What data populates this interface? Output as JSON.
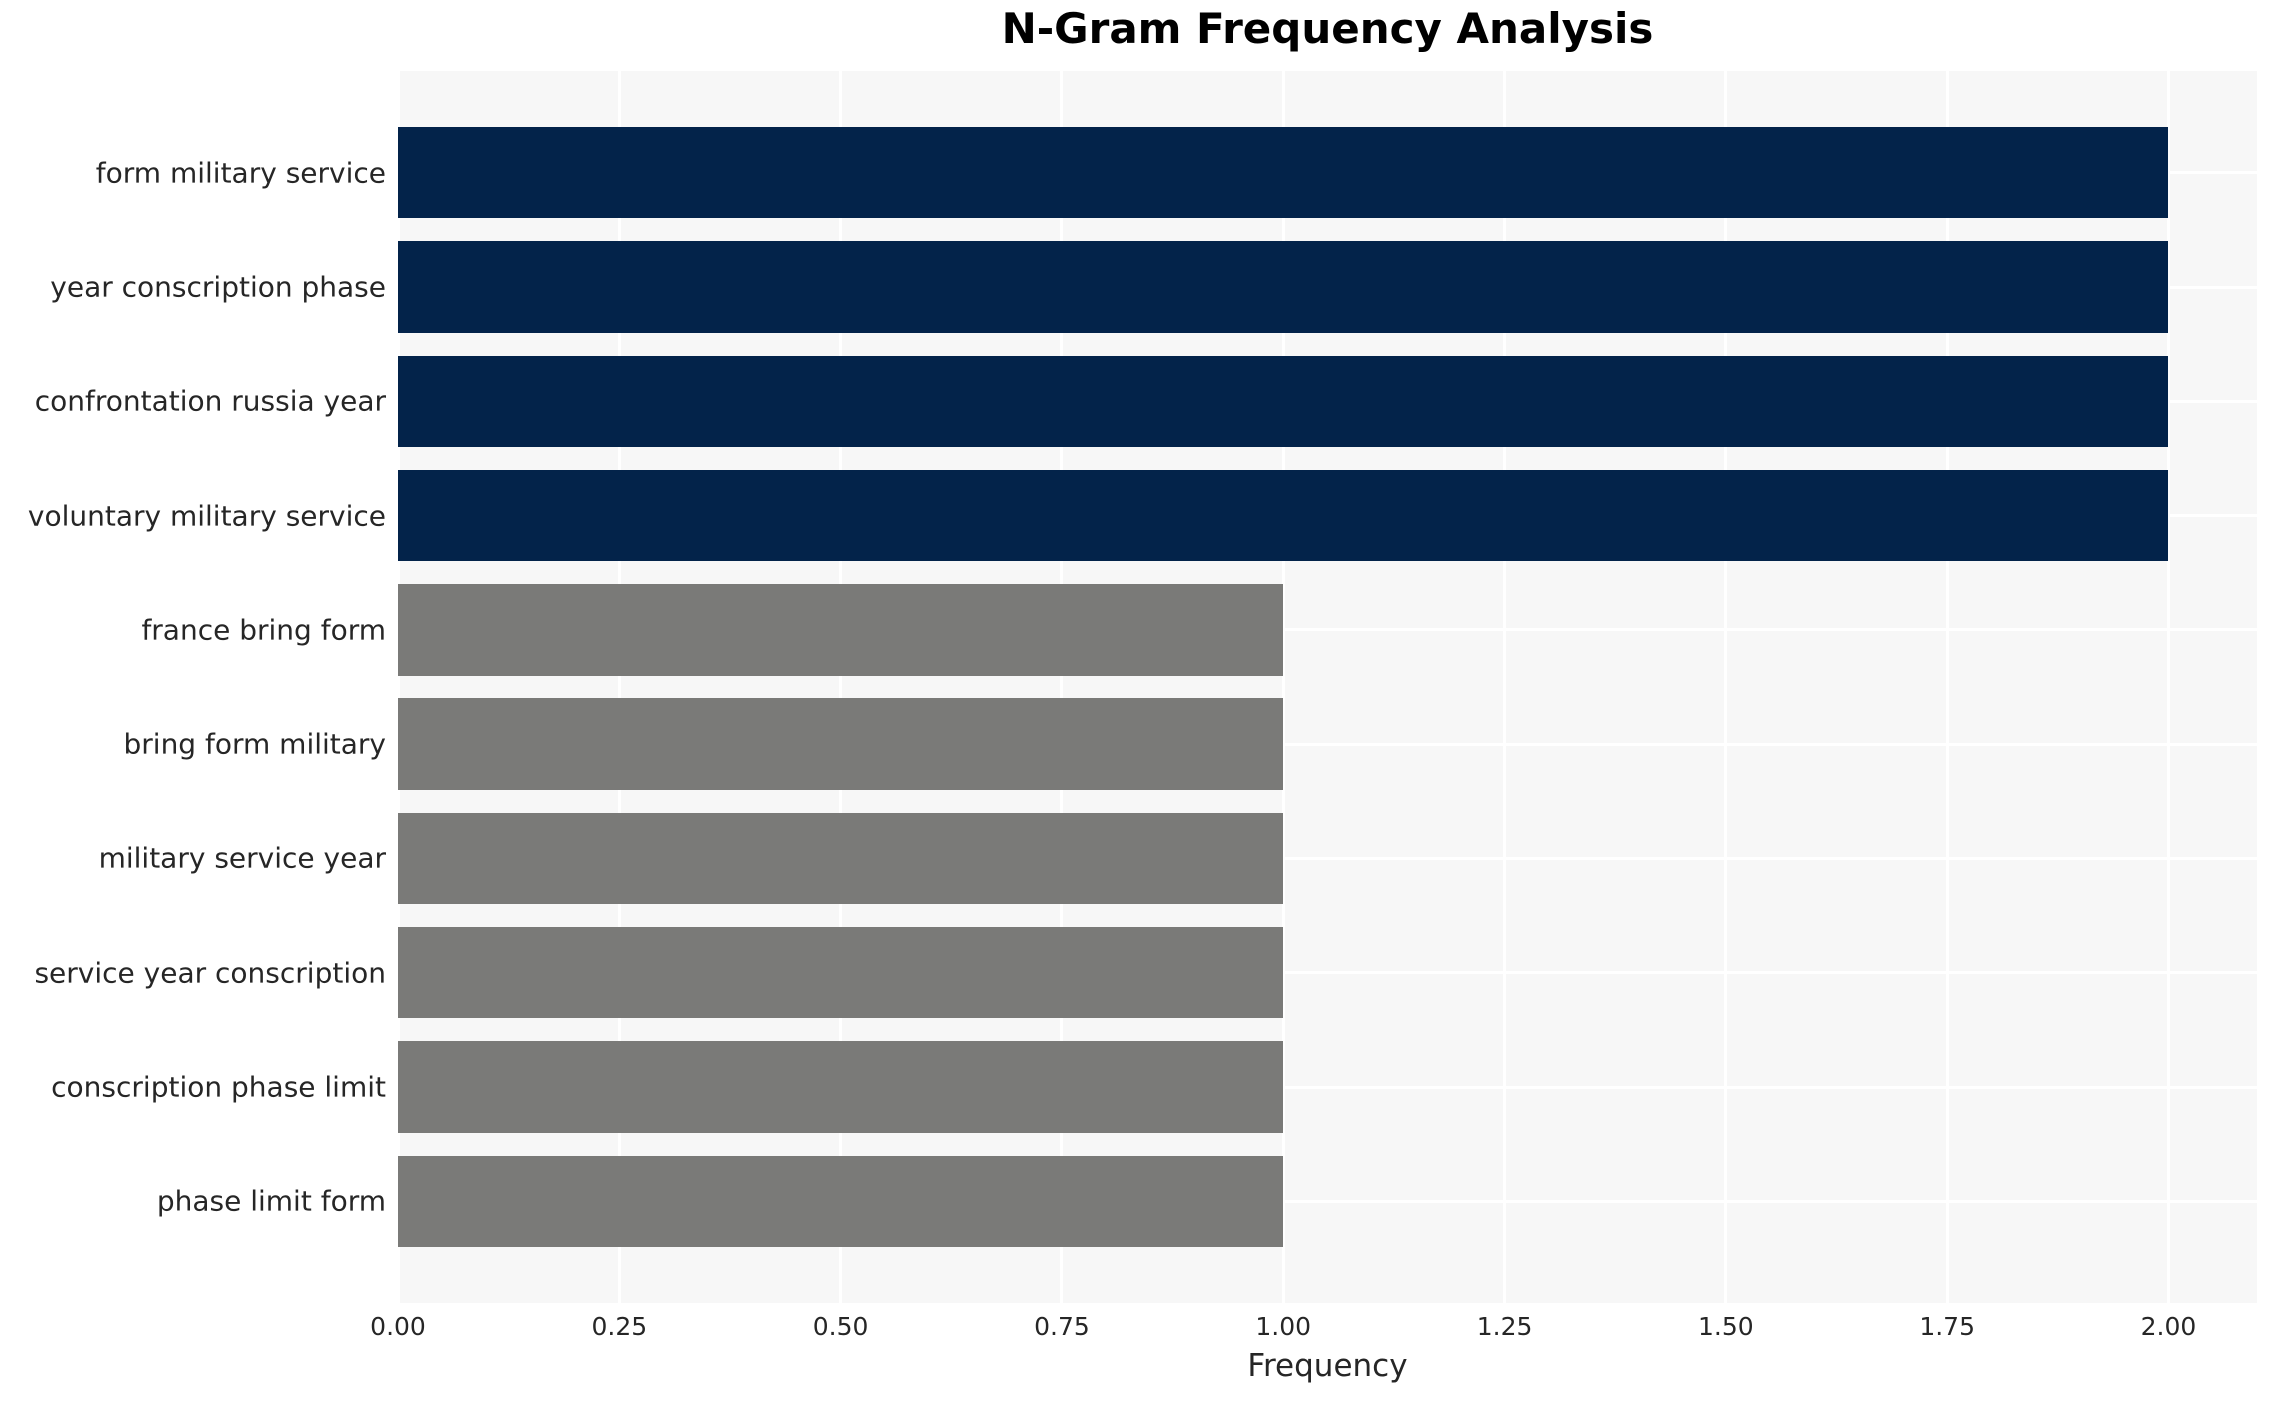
{
  "chart_data": {
    "type": "bar",
    "orientation": "horizontal",
    "title": "N-Gram Frequency Analysis",
    "xlabel": "Frequency",
    "ylabel": "",
    "categories": [
      "form military service",
      "year conscription phase",
      "confrontation russia year",
      "voluntary military service",
      "france bring form",
      "bring form military",
      "military service year",
      "service year conscription",
      "conscription phase limit",
      "phase limit form"
    ],
    "values": [
      2.0,
      2.0,
      2.0,
      2.0,
      1.0,
      1.0,
      1.0,
      1.0,
      1.0,
      1.0
    ],
    "bar_colors": [
      "#03234A",
      "#03234A",
      "#03234A",
      "#03234A",
      "#7A7A78",
      "#7A7A78",
      "#7A7A78",
      "#7A7A78",
      "#7A7A78",
      "#7A7A78"
    ],
    "xlim": [
      0,
      2.1
    ],
    "xticks": [
      {
        "value": 0.0,
        "label": "0.00"
      },
      {
        "value": 0.25,
        "label": "0.25"
      },
      {
        "value": 0.5,
        "label": "0.50"
      },
      {
        "value": 0.75,
        "label": "0.75"
      },
      {
        "value": 1.0,
        "label": "1.00"
      },
      {
        "value": 1.25,
        "label": "1.25"
      },
      {
        "value": 1.5,
        "label": "1.50"
      },
      {
        "value": 1.75,
        "label": "1.75"
      },
      {
        "value": 2.0,
        "label": "2.00"
      }
    ],
    "grid": true,
    "legend": false,
    "plot_background": "#F7F7F7",
    "grid_color": "#FFFFFF",
    "text_color": "#262626",
    "title_color": "#000000"
  }
}
